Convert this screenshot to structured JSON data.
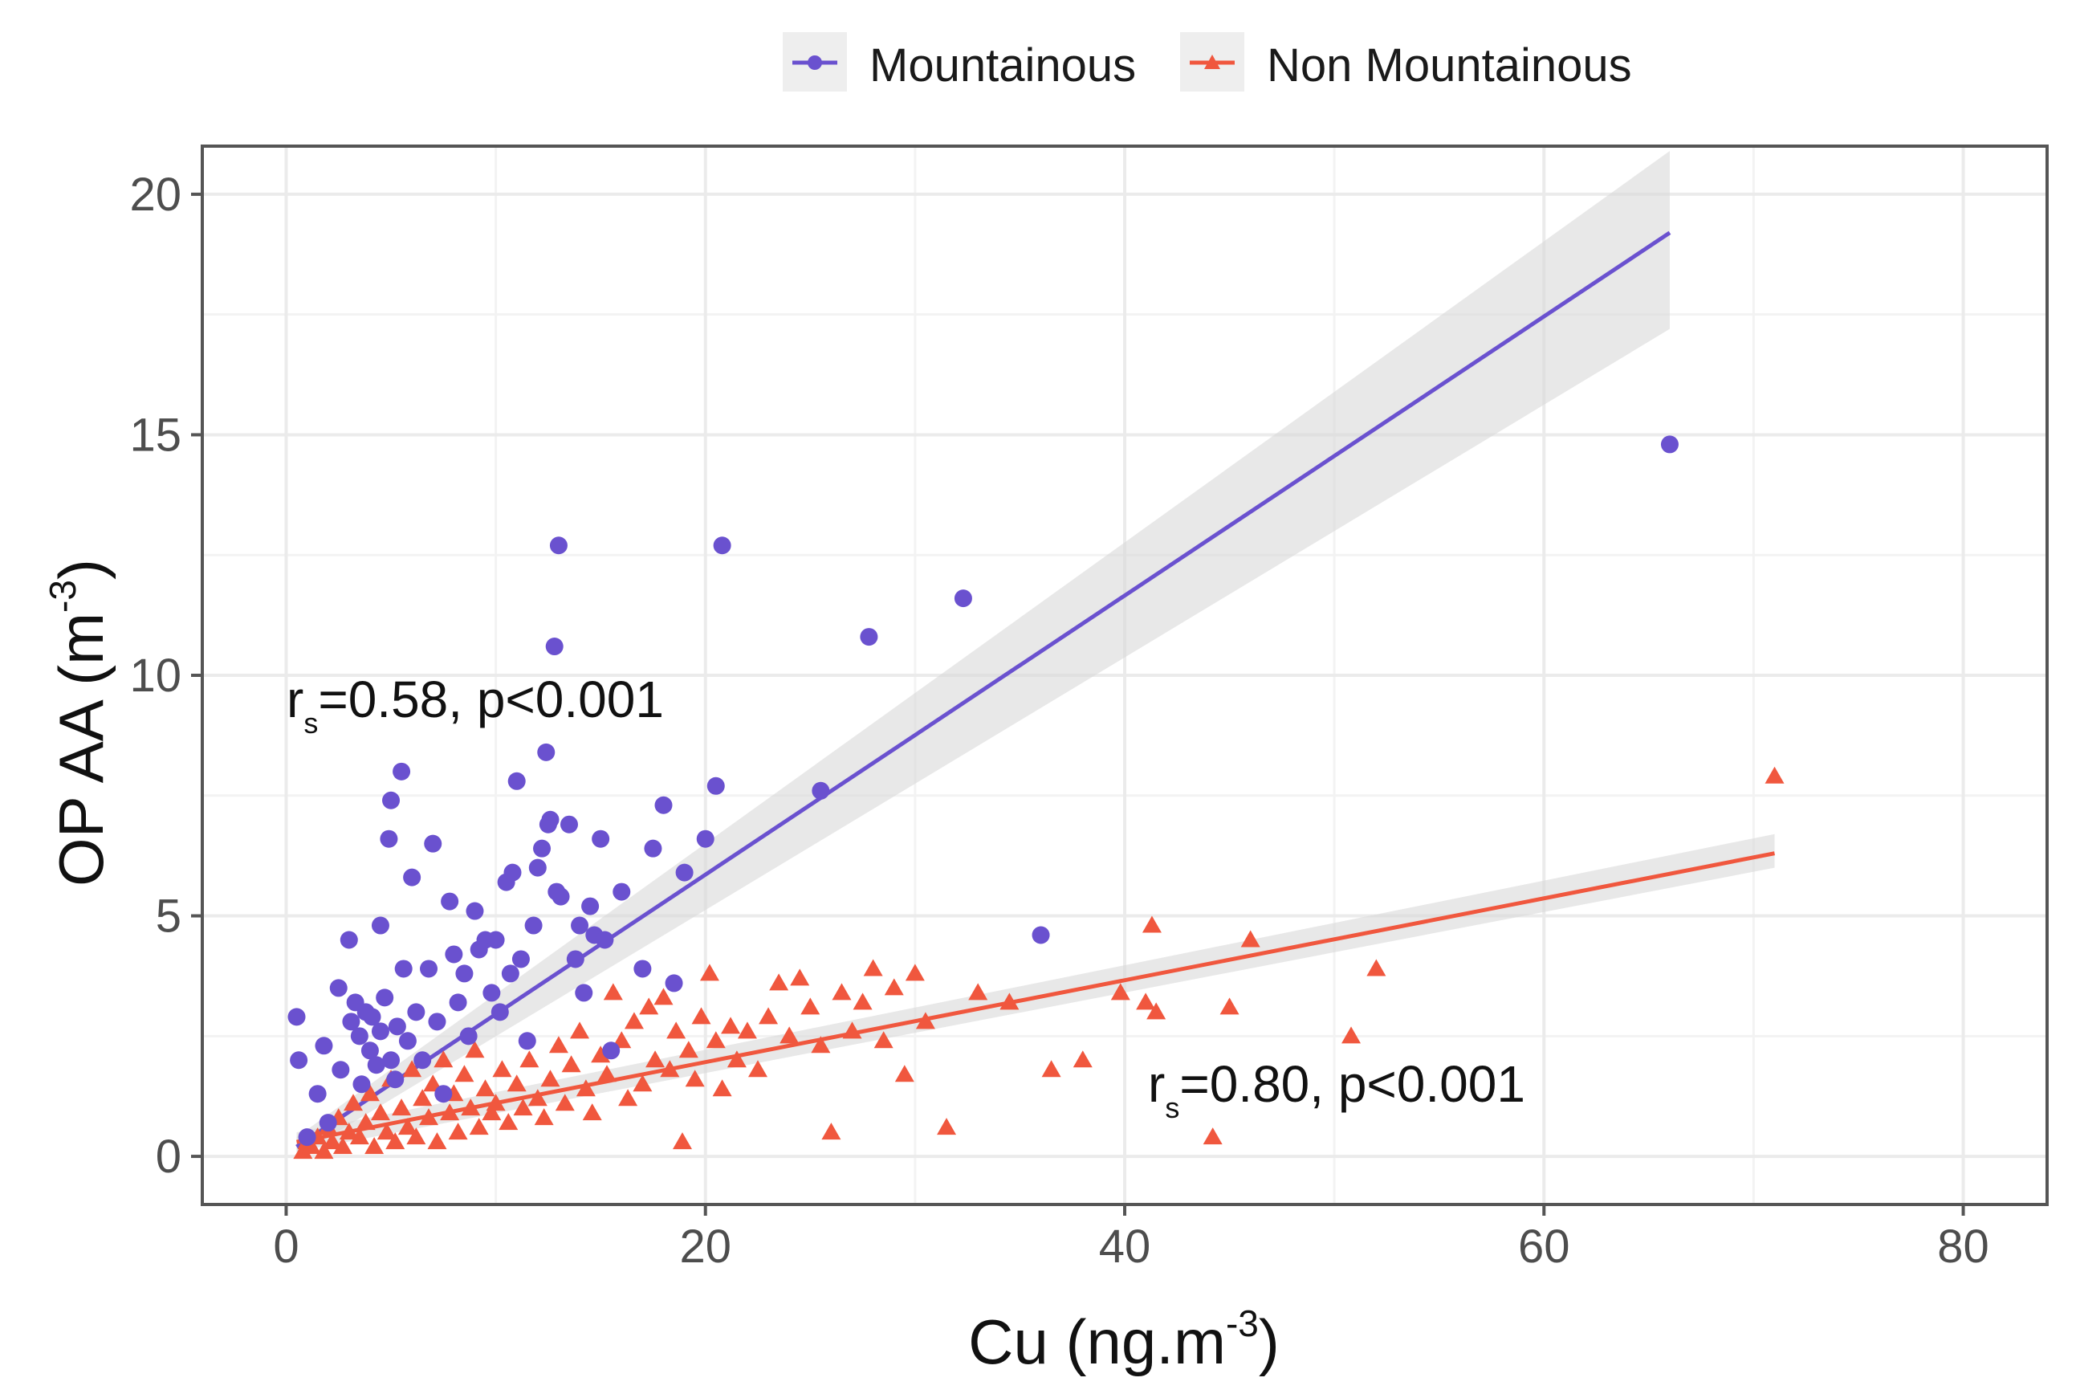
{
  "chart_data": {
    "type": "scatter",
    "xlabel": "Cu (ng.m",
    "xlabel_sup": "-3",
    "xlabel_end": ")",
    "ylabel": "OP AA (m",
    "ylabel_sup": "-3",
    "ylabel_end": ")",
    "xlim": [
      -4,
      84
    ],
    "ylim": [
      -1,
      21
    ],
    "xticks": [
      0,
      20,
      40,
      60,
      80
    ],
    "yticks": [
      0,
      5,
      10,
      15,
      20
    ],
    "xtick_labels": [
      "0",
      "20",
      "40",
      "60",
      "80"
    ],
    "ytick_labels": [
      "0",
      "5",
      "10",
      "15",
      "20"
    ],
    "grid": true,
    "legend_position": "top",
    "colors": {
      "mountainous": "#6a51cf",
      "non_mountainous": "#f0573e",
      "band": "#d9d9d9",
      "grid": "#ebebeb",
      "frame": "#555555"
    },
    "series": [
      {
        "name": "Mountainous",
        "marker": "circle",
        "fit": {
          "x": [
            0.5,
            66
          ],
          "y": [
            0.2,
            19.2
          ],
          "band_lo": [
            0.0,
            17.2
          ],
          "band_hi": [
            0.4,
            20.9
          ]
        },
        "points": [
          [
            0.5,
            2.9
          ],
          [
            0.6,
            2.0
          ],
          [
            1.0,
            0.4
          ],
          [
            1.5,
            1.3
          ],
          [
            1.8,
            2.3
          ],
          [
            2.0,
            0.7
          ],
          [
            2.5,
            3.5
          ],
          [
            2.6,
            1.8
          ],
          [
            3.0,
            4.5
          ],
          [
            3.1,
            2.8
          ],
          [
            3.3,
            3.2
          ],
          [
            3.5,
            2.5
          ],
          [
            3.6,
            1.5
          ],
          [
            3.8,
            3.0
          ],
          [
            4.0,
            2.2
          ],
          [
            4.1,
            2.9
          ],
          [
            4.3,
            1.9
          ],
          [
            4.5,
            2.6
          ],
          [
            4.5,
            4.8
          ],
          [
            4.7,
            3.3
          ],
          [
            4.9,
            6.6
          ],
          [
            5.0,
            7.4
          ],
          [
            5.0,
            2.0
          ],
          [
            5.2,
            1.6
          ],
          [
            5.3,
            2.7
          ],
          [
            5.5,
            8.0
          ],
          [
            5.6,
            3.9
          ],
          [
            5.8,
            2.4
          ],
          [
            6.0,
            5.8
          ],
          [
            6.2,
            3.0
          ],
          [
            6.5,
            2.0
          ],
          [
            6.8,
            3.9
          ],
          [
            7.0,
            6.5
          ],
          [
            7.2,
            2.8
          ],
          [
            7.5,
            1.3
          ],
          [
            7.8,
            5.3
          ],
          [
            8.0,
            4.2
          ],
          [
            8.2,
            3.2
          ],
          [
            8.5,
            3.8
          ],
          [
            8.7,
            2.5
          ],
          [
            9.0,
            5.1
          ],
          [
            9.2,
            4.3
          ],
          [
            9.5,
            4.5
          ],
          [
            9.8,
            3.4
          ],
          [
            10.0,
            4.5
          ],
          [
            10.2,
            3.0
          ],
          [
            10.5,
            5.7
          ],
          [
            10.7,
            3.8
          ],
          [
            10.8,
            5.9
          ],
          [
            11.0,
            7.8
          ],
          [
            11.2,
            4.1
          ],
          [
            11.5,
            2.4
          ],
          [
            11.8,
            4.8
          ],
          [
            12.0,
            6.0
          ],
          [
            12.2,
            6.4
          ],
          [
            12.4,
            8.4
          ],
          [
            12.5,
            6.9
          ],
          [
            12.6,
            7.0
          ],
          [
            12.8,
            10.6
          ],
          [
            12.9,
            5.5
          ],
          [
            13.0,
            12.7
          ],
          [
            13.1,
            5.4
          ],
          [
            13.5,
            6.9
          ],
          [
            13.8,
            4.1
          ],
          [
            14.0,
            4.8
          ],
          [
            14.2,
            3.4
          ],
          [
            14.5,
            5.2
          ],
          [
            14.7,
            4.6
          ],
          [
            15.0,
            6.6
          ],
          [
            15.2,
            4.5
          ],
          [
            15.5,
            2.2
          ],
          [
            16.0,
            5.5
          ],
          [
            17.0,
            3.9
          ],
          [
            17.5,
            6.4
          ],
          [
            18.0,
            7.3
          ],
          [
            18.5,
            3.6
          ],
          [
            19.0,
            5.9
          ],
          [
            20.0,
            6.6
          ],
          [
            20.5,
            7.7
          ],
          [
            20.8,
            12.7
          ],
          [
            25.5,
            7.6
          ],
          [
            27.8,
            10.8
          ],
          [
            32.3,
            11.6
          ],
          [
            36.0,
            4.6
          ],
          [
            66.0,
            14.8
          ]
        ]
      },
      {
        "name": "Non Mountainous",
        "marker": "triangle",
        "fit": {
          "x": [
            0.5,
            71
          ],
          "y": [
            0.3,
            6.3
          ],
          "band_lo": [
            0.1,
            6.0
          ],
          "band_hi": [
            0.5,
            6.7
          ]
        },
        "points": [
          [
            0.8,
            0.1
          ],
          [
            1.0,
            0.3
          ],
          [
            1.2,
            0.2
          ],
          [
            1.5,
            0.4
          ],
          [
            1.8,
            0.1
          ],
          [
            2.0,
            0.6
          ],
          [
            2.2,
            0.3
          ],
          [
            2.5,
            0.8
          ],
          [
            2.7,
            0.2
          ],
          [
            3.0,
            0.5
          ],
          [
            3.2,
            1.1
          ],
          [
            3.5,
            0.4
          ],
          [
            3.8,
            0.7
          ],
          [
            4.0,
            1.3
          ],
          [
            4.2,
            0.2
          ],
          [
            4.5,
            0.9
          ],
          [
            4.8,
            0.5
          ],
          [
            5.0,
            1.6
          ],
          [
            5.2,
            0.3
          ],
          [
            5.5,
            1.0
          ],
          [
            5.8,
            0.6
          ],
          [
            6.0,
            1.8
          ],
          [
            6.2,
            0.4
          ],
          [
            6.5,
            1.2
          ],
          [
            6.8,
            0.8
          ],
          [
            7.0,
            1.5
          ],
          [
            7.2,
            0.3
          ],
          [
            7.5,
            2.0
          ],
          [
            7.8,
            0.9
          ],
          [
            8.0,
            1.3
          ],
          [
            8.2,
            0.5
          ],
          [
            8.5,
            1.7
          ],
          [
            8.8,
            1.0
          ],
          [
            9.0,
            2.2
          ],
          [
            9.2,
            0.6
          ],
          [
            9.5,
            1.4
          ],
          [
            9.8,
            0.9
          ],
          [
            10.0,
            1.1
          ],
          [
            10.3,
            1.8
          ],
          [
            10.6,
            0.7
          ],
          [
            11.0,
            1.5
          ],
          [
            11.3,
            1.0
          ],
          [
            11.6,
            2.0
          ],
          [
            12.0,
            1.2
          ],
          [
            12.3,
            0.8
          ],
          [
            12.6,
            1.6
          ],
          [
            13.0,
            2.3
          ],
          [
            13.3,
            1.1
          ],
          [
            13.6,
            1.9
          ],
          [
            14.0,
            2.6
          ],
          [
            14.3,
            1.4
          ],
          [
            14.6,
            0.9
          ],
          [
            15.0,
            2.1
          ],
          [
            15.3,
            1.7
          ],
          [
            15.6,
            3.4
          ],
          [
            16.0,
            2.4
          ],
          [
            16.3,
            1.2
          ],
          [
            16.6,
            2.8
          ],
          [
            17.0,
            1.5
          ],
          [
            17.3,
            3.1
          ],
          [
            17.6,
            2.0
          ],
          [
            18.0,
            3.3
          ],
          [
            18.3,
            1.8
          ],
          [
            18.6,
            2.6
          ],
          [
            18.9,
            0.3
          ],
          [
            19.2,
            2.2
          ],
          [
            19.5,
            1.6
          ],
          [
            19.8,
            2.9
          ],
          [
            20.2,
            3.8
          ],
          [
            20.5,
            2.4
          ],
          [
            20.8,
            1.4
          ],
          [
            21.2,
            2.7
          ],
          [
            21.5,
            2.0
          ],
          [
            22.0,
            2.6
          ],
          [
            22.5,
            1.8
          ],
          [
            23.0,
            2.9
          ],
          [
            23.5,
            3.6
          ],
          [
            24.0,
            2.5
          ],
          [
            24.5,
            3.7
          ],
          [
            25.0,
            3.1
          ],
          [
            25.5,
            2.3
          ],
          [
            26.0,
            0.5
          ],
          [
            26.5,
            3.4
          ],
          [
            27.0,
            2.6
          ],
          [
            27.5,
            3.2
          ],
          [
            28.0,
            3.9
          ],
          [
            28.5,
            2.4
          ],
          [
            29.0,
            3.5
          ],
          [
            29.5,
            1.7
          ],
          [
            30.0,
            3.8
          ],
          [
            30.5,
            2.8
          ],
          [
            31.5,
            0.6
          ],
          [
            33.0,
            3.4
          ],
          [
            34.5,
            3.2
          ],
          [
            36.5,
            1.8
          ],
          [
            38.0,
            2.0
          ],
          [
            39.8,
            3.4
          ],
          [
            41.0,
            3.2
          ],
          [
            41.3,
            4.8
          ],
          [
            41.5,
            3.0
          ],
          [
            44.2,
            0.4
          ],
          [
            45.0,
            3.1
          ],
          [
            46.0,
            4.5
          ],
          [
            50.8,
            2.5
          ],
          [
            52.0,
            3.9
          ],
          [
            71.0,
            7.9
          ]
        ]
      }
    ],
    "annotations": [
      {
        "prefix": "r",
        "sub": "s",
        "text": "=0.58, p<0.001"
      },
      {
        "prefix": "r",
        "sub": "s",
        "text": "=0.80, p<0.001"
      }
    ]
  }
}
